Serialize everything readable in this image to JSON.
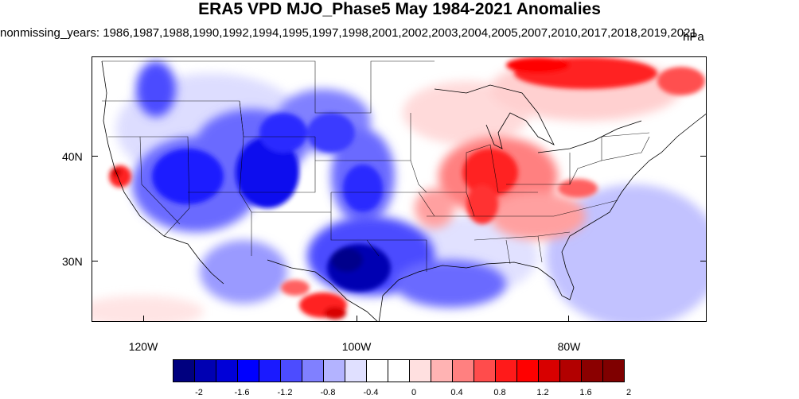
{
  "title": "ERA5 VPD MJO_Phase5 May 1984-2021 Anomalies",
  "subtitle": "nonmissing_years: 1986,1987,1988,1990,1992,1994,1995,1997,1998,2001,2002,2003,2004,2005,2007,2010,2017,2018,2019,2021",
  "units": "hPa",
  "latitude_labels": [
    "40N",
    "30N"
  ],
  "longitude_labels": [
    "120W",
    "100W",
    "80W"
  ],
  "colorbar": {
    "labels": [
      "-2",
      "-1.6",
      "-1.2",
      "-0.8",
      "-0.4",
      "0",
      "0.4",
      "0.8",
      "1.2",
      "1.6",
      "2"
    ],
    "colors": [
      "#00007f",
      "#0000b2",
      "#0000d8",
      "#0000ff",
      "#1a1aff",
      "#4c4cff",
      "#8080ff",
      "#b3b3ff",
      "#e0e0ff",
      "#ffffff",
      "#ffffff",
      "#ffe0e0",
      "#ffb3b3",
      "#ff8080",
      "#ff4c4c",
      "#ff1a1a",
      "#ff0000",
      "#d80000",
      "#b20000",
      "#8b0000",
      "#7f0000"
    ]
  },
  "anomaly_regions": {
    "negative": [
      "Northwest",
      "Great Basin",
      "Southern Rockies",
      "Texas",
      "Gulf of Mexico",
      "Western Atlantic"
    ],
    "positive": [
      "Central California coast",
      "Ohio and Tennessee valleys",
      "Southern Quebec",
      "Rio Grande",
      "Northern Mexico coast"
    ]
  }
}
